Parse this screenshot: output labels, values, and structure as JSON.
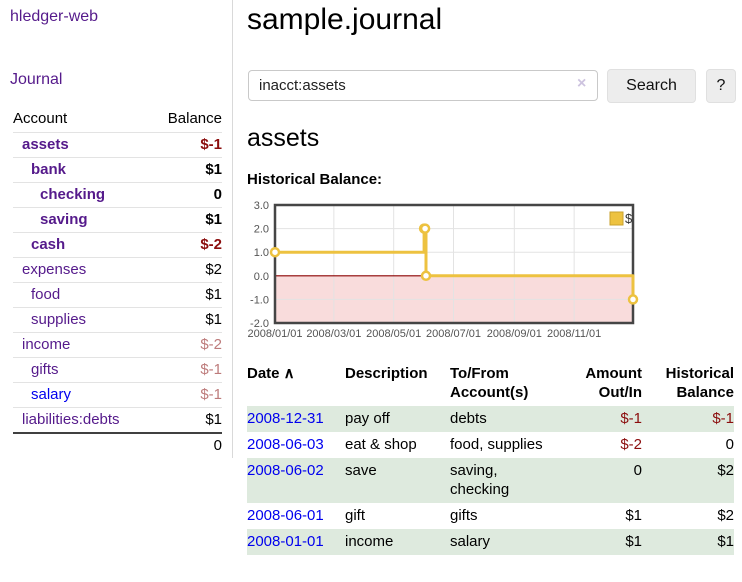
{
  "app": {
    "brand": "hledger-web"
  },
  "sidebar": {
    "journal_link": "Journal",
    "accounts_table": {
      "headers": {
        "account": "Account",
        "balance": "Balance"
      },
      "rows": [
        {
          "account": "assets",
          "balance": "$-1",
          "level": 1,
          "bold": true,
          "balance_style": "neg",
          "link_style": "purple"
        },
        {
          "account": "bank",
          "balance": "$1",
          "level": 2,
          "bold": true,
          "balance_style": "pos",
          "link_style": "purple"
        },
        {
          "account": "checking",
          "balance": "0",
          "level": 3,
          "bold": true,
          "balance_style": "pos",
          "link_style": "purple"
        },
        {
          "account": "saving",
          "balance": "$1",
          "level": 3,
          "bold": true,
          "balance_style": "pos",
          "link_style": "purple"
        },
        {
          "account": "cash",
          "balance": "$-2",
          "level": 2,
          "bold": true,
          "balance_style": "neg",
          "link_style": "purple"
        },
        {
          "account": "expenses",
          "balance": "$2",
          "level": 1,
          "bold": false,
          "balance_style": "pos",
          "link_style": "purple"
        },
        {
          "account": "food",
          "balance": "$1",
          "level": 2,
          "bold": false,
          "balance_style": "pos",
          "link_style": "purple"
        },
        {
          "account": "supplies",
          "balance": "$1",
          "level": 2,
          "bold": false,
          "balance_style": "pos",
          "link_style": "purple"
        },
        {
          "account": "income",
          "balance": "$-2",
          "level": 1,
          "bold": false,
          "balance_style": "negf",
          "link_style": "purple"
        },
        {
          "account": "gifts",
          "balance": "$-1",
          "level": 2,
          "bold": false,
          "balance_style": "negf",
          "link_style": "purple"
        },
        {
          "account": "salary",
          "balance": "$-1",
          "level": 2,
          "bold": false,
          "balance_style": "negf",
          "link_style": "blue"
        },
        {
          "account": "liabilities:debts",
          "balance": "$1",
          "level": 1,
          "bold": false,
          "balance_style": "pos",
          "link_style": "purple"
        }
      ],
      "total": "0"
    }
  },
  "main": {
    "title": "sample.journal",
    "search": {
      "value": "inacct:assets",
      "clear_icon": "×",
      "button_label": "Search",
      "help_label": "?"
    },
    "account_heading": "assets",
    "chart_label": "Historical Balance:"
  },
  "chart_data": {
    "type": "line",
    "step": true,
    "title": "Historical Balance",
    "legend": {
      "label": "$",
      "position": "top-right"
    },
    "series": [
      {
        "name": "$",
        "color": "#edc240",
        "points": [
          [
            "2008-01-01",
            1.0
          ],
          [
            "2008-06-01",
            2.0
          ],
          [
            "2008-06-02",
            2.0
          ],
          [
            "2008-06-03",
            0.0
          ],
          [
            "2008-12-31",
            -1.0
          ]
        ]
      }
    ],
    "ylim": [
      -2.0,
      3.0
    ],
    "y_ticks": [
      3.0,
      2.0,
      1.0,
      0.0,
      -1.0,
      -2.0
    ],
    "y_tick_labels": [
      "3.0",
      "2.0",
      "1.0",
      "0.0",
      "-1.0",
      "-2.0"
    ],
    "xlim": [
      "2008-01-01",
      "2008-12-31"
    ],
    "x_ticks": [
      "2008-01-01",
      "2008-03-01",
      "2008-05-01",
      "2008-07-01",
      "2008-09-01",
      "2008-11-01"
    ],
    "x_tick_labels": [
      "2008/01/01",
      "2008/03/01",
      "2008/05/01",
      "2008/07/01",
      "2008/09/01",
      "2008/11/01"
    ],
    "grid": true,
    "grid_color": "#e3e3e3",
    "border_color": "#454545",
    "axis_text_color": "#545454",
    "negative_region_color": "#f9dcdc",
    "zero_line_color": "#8b0000"
  },
  "register_table": {
    "headers": [
      {
        "label": "Date",
        "sort_arrow": "∧",
        "align": "left"
      },
      {
        "label": "Description",
        "align": "left"
      },
      {
        "label": "To/From Account(s)",
        "align": "left"
      },
      {
        "label": "Amount Out/In",
        "align": "right"
      },
      {
        "label": "Historical Balance",
        "align": "right"
      }
    ],
    "rows": [
      {
        "date": "2008-12-31",
        "description": "pay off",
        "accounts": "debts",
        "amount": "$-1",
        "amount_neg": true,
        "balance": "$-1",
        "balance_neg": true
      },
      {
        "date": "2008-06-03",
        "description": "eat & shop",
        "accounts": "food, supplies",
        "amount": "$-2",
        "amount_neg": true,
        "balance": "0",
        "balance_neg": false
      },
      {
        "date": "2008-06-02",
        "description": "save",
        "accounts": "saving, checking",
        "amount": "0",
        "amount_neg": false,
        "balance": "$2",
        "balance_neg": false
      },
      {
        "date": "2008-06-01",
        "description": "gift",
        "accounts": "gifts",
        "amount": "$1",
        "amount_neg": false,
        "balance": "$2",
        "balance_neg": false
      },
      {
        "date": "2008-01-01",
        "description": "income",
        "accounts": "salary",
        "amount": "$1",
        "amount_neg": false,
        "balance": "$1",
        "balance_neg": false
      }
    ]
  }
}
